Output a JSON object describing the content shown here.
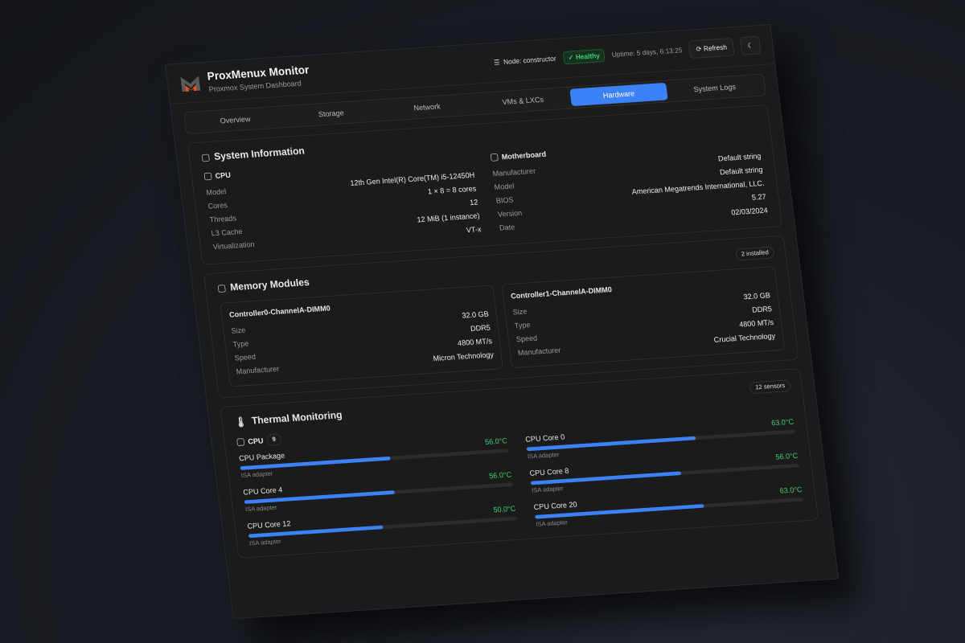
{
  "header": {
    "title": "ProxMenux Monitor",
    "subtitle": "Proxmox System Dashboard",
    "node": "Node: constructor",
    "status": "Healthy",
    "uptime": "Uptime: 5 days, 6:13:25",
    "refresh": "Refresh",
    "colors": {
      "accent": "#3b82f6",
      "healthy": "#3ecf6b",
      "logo_orange": "#e8531f"
    }
  },
  "tabs": [
    {
      "label": "Overview"
    },
    {
      "label": "Storage"
    },
    {
      "label": "Network"
    },
    {
      "label": "VMs & LXCs"
    },
    {
      "label": "Hardware",
      "active": true
    },
    {
      "label": "System Logs"
    }
  ],
  "system": {
    "title": "System Information",
    "cpu": {
      "title": "CPU",
      "rows": [
        {
          "k": "Model",
          "v": "12th Gen Intel(R) Core(TM) i5-12450H"
        },
        {
          "k": "Cores",
          "v": "1 × 8 = 8 cores"
        },
        {
          "k": "Threads",
          "v": "12"
        },
        {
          "k": "L3 Cache",
          "v": "12 MiB (1 instance)"
        },
        {
          "k": "Virtualization",
          "v": "VT-x"
        }
      ]
    },
    "motherboard": {
      "title": "Motherboard",
      "rows": [
        {
          "k": "Manufacturer",
          "v": "Default string"
        },
        {
          "k": "Model",
          "v": "Default string"
        },
        {
          "k": "BIOS",
          "v": "American Megatrends International, LLC."
        },
        {
          "k": "Version",
          "v": "5.27"
        },
        {
          "k": "Date",
          "v": "02/03/2024"
        }
      ]
    }
  },
  "memory": {
    "title": "Memory Modules",
    "badge": "2 installed",
    "modules": [
      {
        "name": "Controller0-ChannelA-DIMM0",
        "rows": [
          {
            "k": "Size",
            "v": "32.0 GB"
          },
          {
            "k": "Type",
            "v": "DDR5"
          },
          {
            "k": "Speed",
            "v": "4800 MT/s"
          },
          {
            "k": "Manufacturer",
            "v": "Micron Technology"
          }
        ]
      },
      {
        "name": "Controller1-ChannelA-DIMM0",
        "rows": [
          {
            "k": "Size",
            "v": "32.0 GB"
          },
          {
            "k": "Type",
            "v": "DDR5"
          },
          {
            "k": "Speed",
            "v": "4800 MT/s"
          },
          {
            "k": "Manufacturer",
            "v": "Crucial Technology"
          }
        ]
      }
    ]
  },
  "thermal": {
    "title": "Thermal Monitoring",
    "badge": "12 sensors",
    "group": "CPU",
    "group_count": "9",
    "sensors": [
      {
        "name": "CPU Package",
        "value": "56.0°C",
        "fill_pct": 56,
        "adapter": "ISA adapter"
      },
      {
        "name": "CPU Core 0",
        "value": "63.0°C",
        "fill_pct": 63,
        "adapter": "ISA adapter"
      },
      {
        "name": "CPU Core 4",
        "value": "56.0°C",
        "fill_pct": 56,
        "adapter": "ISA adapter"
      },
      {
        "name": "CPU Core 8",
        "value": "56.0°C",
        "fill_pct": 56,
        "adapter": "ISA adapter"
      },
      {
        "name": "CPU Core 12",
        "value": "50.0°C",
        "fill_pct": 50,
        "adapter": "ISA adapter"
      },
      {
        "name": "CPU Core 20",
        "value": "63.0°C",
        "fill_pct": 63,
        "adapter": "ISA adapter"
      }
    ]
  }
}
